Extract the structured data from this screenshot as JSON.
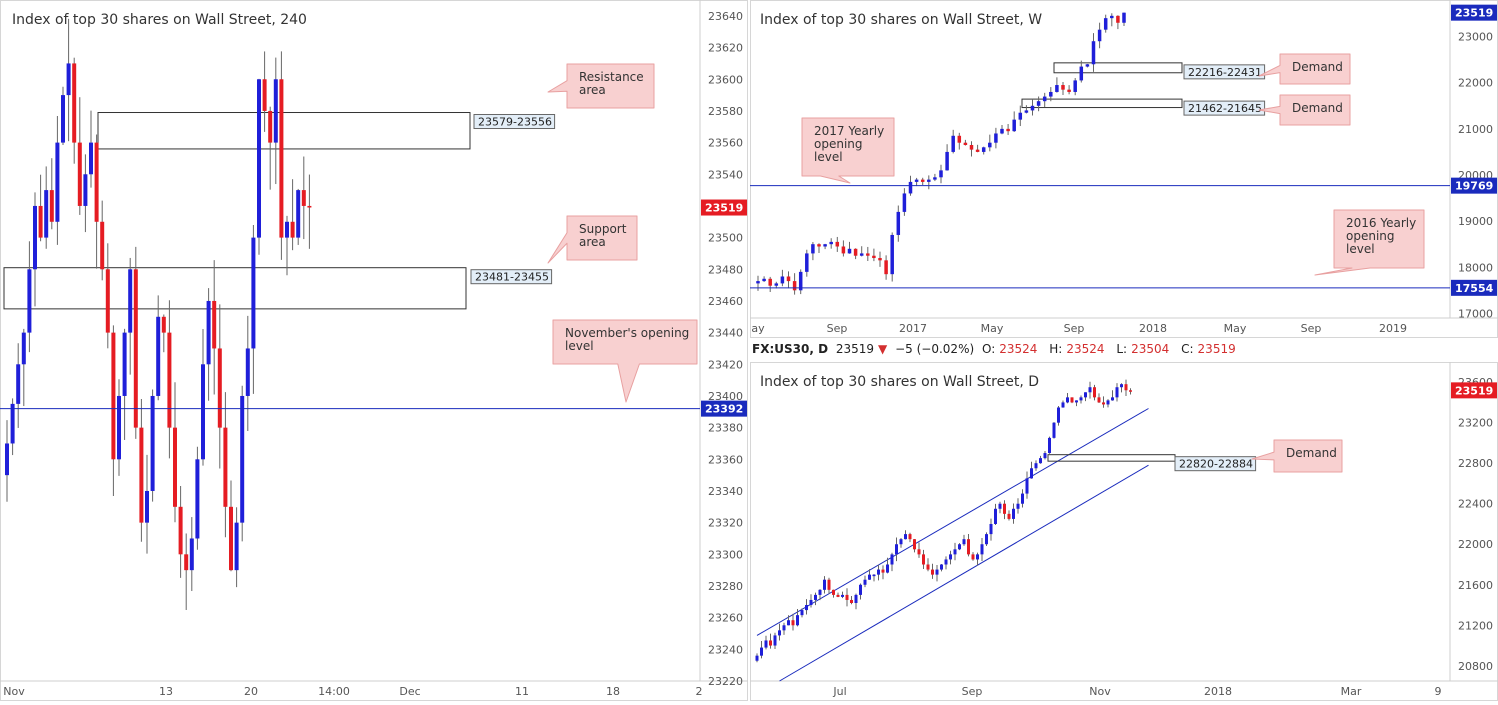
{
  "colors": {
    "up": "#1f1fd9",
    "down": "#e51c23",
    "wick": "#666666",
    "hline": "#1a2bbd",
    "callout_fill": "#f8d0d0",
    "callout_stroke": "#e8a0a0",
    "zone_label_fill": "#e3eef8",
    "price_red": "#e51c23",
    "price_blue": "#1a2bbd"
  },
  "symbol_bar": {
    "symbol": "FX:US30, D",
    "price": "23519",
    "arrow": "▼",
    "change": "−5 (−0.02%)",
    "o_label": "O:",
    "o": "23524",
    "h_label": "H:",
    "h": "23524",
    "l_label": "L:",
    "l": "23504",
    "c_label": "C:",
    "c": "23519"
  },
  "chart_data": [
    {
      "type": "candlestick",
      "title": "Index of top 30 shares on Wall Street, 240",
      "ylim": [
        23220,
        23645
      ],
      "y_ticks": [
        23220,
        23240,
        23260,
        23280,
        23300,
        23320,
        23340,
        23360,
        23380,
        23400,
        23420,
        23440,
        23460,
        23480,
        23500,
        23520,
        23540,
        23560,
        23580,
        23600,
        23620,
        23640
      ],
      "x_ticks": [
        "Nov",
        "13",
        "20",
        "14:00",
        "Dec",
        "11",
        "18",
        "2"
      ],
      "last_price": "23519",
      "hline": {
        "value": 23392,
        "label": "23392"
      },
      "zones": [
        {
          "label": "23579-23556",
          "low": 23556,
          "high": 23579
        },
        {
          "label": "23481-23455",
          "low": 23455,
          "high": 23481
        }
      ],
      "annotations": [
        {
          "text": "Resistance area",
          "lines": [
            "Resistance",
            "area"
          ]
        },
        {
          "text": "Support area",
          "lines": [
            "Support",
            "area"
          ]
        },
        {
          "text": "November's opening level",
          "lines": [
            "November's opening",
            "level"
          ]
        }
      ],
      "closes": [
        23370,
        23395,
        23420,
        23440,
        23480,
        23520,
        23500,
        23530,
        23510,
        23560,
        23590,
        23610,
        23560,
        23520,
        23540,
        23560,
        23510,
        23480,
        23440,
        23360,
        23400,
        23440,
        23480,
        23380,
        23320,
        23340,
        23400,
        23450,
        23440,
        23380,
        23330,
        23300,
        23290,
        23310,
        23360,
        23420,
        23460,
        23430,
        23380,
        23330,
        23290,
        23320,
        23400,
        23430,
        23500,
        23600,
        23580,
        23560,
        23600,
        23500,
        23510,
        23500,
        23530,
        23520,
        23519
      ]
    },
    {
      "type": "candlestick",
      "title": "Index of top 30 shares on Wall Street, W",
      "ylim": [
        16900,
        23620
      ],
      "y_ticks": [
        17000,
        18000,
        19000,
        20000,
        21000,
        22000,
        23000
      ],
      "x_ticks": [
        "ay",
        "Sep",
        "2017",
        "May",
        "Sep",
        "2018",
        "May",
        "Sep",
        "2019"
      ],
      "last_price": "23519",
      "hlines": [
        {
          "value": 19769,
          "label": "19769"
        },
        {
          "value": 17554,
          "label": "17554"
        }
      ],
      "zones": [
        {
          "label": "22216-22431",
          "low": 22216,
          "high": 22431
        },
        {
          "label": "21462-21645",
          "low": 21462,
          "high": 21645
        }
      ],
      "annotations": [
        {
          "text": "2017 Yearly opening level",
          "lines": [
            "2017 Yearly",
            "opening",
            "level"
          ]
        },
        {
          "text": "2016 Yearly opening level",
          "lines": [
            "2016 Yearly",
            "opening",
            "level"
          ]
        },
        {
          "text": "Demand",
          "lines": [
            "Demand"
          ]
        },
        {
          "text": "Demand",
          "lines": [
            "Demand"
          ]
        }
      ],
      "closes": [
        17700,
        17750,
        17600,
        17650,
        17800,
        17700,
        17500,
        17900,
        18300,
        18500,
        18450,
        18500,
        18550,
        18450,
        18300,
        18400,
        18250,
        18300,
        18250,
        18200,
        18150,
        17850,
        18700,
        19200,
        19600,
        19850,
        19900,
        19850,
        19900,
        19950,
        20100,
        20500,
        20850,
        20700,
        20650,
        20550,
        20500,
        20600,
        20700,
        20900,
        21000,
        20950,
        21200,
        21350,
        21400,
        21500,
        21600,
        21700,
        21800,
        21950,
        21850,
        21800,
        22050,
        22350,
        22400,
        22900,
        23150,
        23400,
        23450,
        23300,
        23519
      ]
    },
    {
      "type": "candlestick",
      "title": "Index of top 30 shares on Wall Street, D",
      "ylim": [
        20650,
        23720
      ],
      "y_ticks": [
        20800,
        21200,
        21600,
        22000,
        22400,
        22800,
        23200,
        23600
      ],
      "x_ticks": [
        "Jul",
        "Sep",
        "Nov",
        "2018",
        "Mar",
        "9"
      ],
      "last_price": "23519",
      "zones": [
        {
          "label": "22820-22884",
          "low": 22820,
          "high": 22884
        }
      ],
      "annotations": [
        {
          "text": "Demand",
          "lines": [
            "Demand"
          ]
        }
      ],
      "channel": {
        "upper": [
          [
            0,
            21100
          ],
          [
            87,
            23340
          ]
        ],
        "lower": [
          [
            5,
            20650
          ],
          [
            87,
            22780
          ]
        ]
      },
      "closes": [
        20900,
        20980,
        21050,
        21000,
        21100,
        21150,
        21200,
        21250,
        21200,
        21300,
        21350,
        21400,
        21450,
        21500,
        21550,
        21650,
        21550,
        21500,
        21480,
        21500,
        21450,
        21420,
        21500,
        21600,
        21650,
        21700,
        21700,
        21750,
        21720,
        21800,
        21900,
        22000,
        22050,
        22100,
        22050,
        21950,
        21900,
        21800,
        21750,
        21700,
        21750,
        21800,
        21850,
        21900,
        21950,
        22000,
        22050,
        21900,
        21850,
        21900,
        22000,
        22100,
        22200,
        22350,
        22400,
        22300,
        22250,
        22350,
        22400,
        22500,
        22650,
        22750,
        22800,
        22850,
        22900,
        23050,
        23200,
        23350,
        23400,
        23450,
        23400,
        23420,
        23450,
        23500,
        23550,
        23450,
        23400,
        23380,
        23420,
        23450,
        23550,
        23580,
        23520,
        23519
      ]
    }
  ]
}
